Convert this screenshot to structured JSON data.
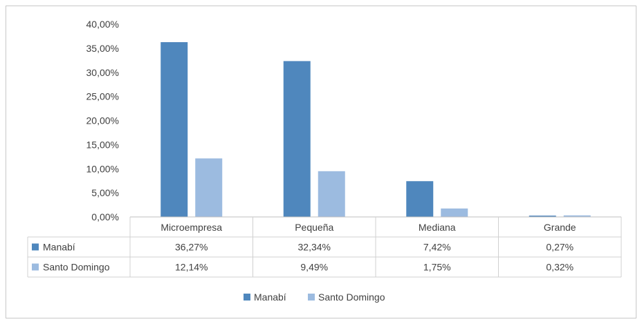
{
  "chart_data": {
    "type": "bar",
    "categories": [
      "Microempresa",
      "Pequeña",
      "Mediana",
      "Grande"
    ],
    "series": [
      {
        "name": "Manabí",
        "values": [
          36.27,
          32.34,
          7.42,
          0.27
        ],
        "labels": [
          "36,27%",
          "32,34%",
          "7,42%",
          "0,27%"
        ],
        "color": "#4f87bd"
      },
      {
        "name": "Santo Domingo",
        "values": [
          12.14,
          9.49,
          1.75,
          0.32
        ],
        "labels": [
          "12,14%",
          "9,49%",
          "1,75%",
          "0,32%"
        ],
        "color": "#9cbbe0"
      }
    ],
    "y_ticks": [
      "0,00%",
      "5,00%",
      "10,00%",
      "15,00%",
      "20,00%",
      "25,00%",
      "30,00%",
      "35,00%",
      "40,00%"
    ],
    "ylim": [
      0,
      40
    ],
    "grid": false,
    "legend": "bottom",
    "data_table": true
  }
}
